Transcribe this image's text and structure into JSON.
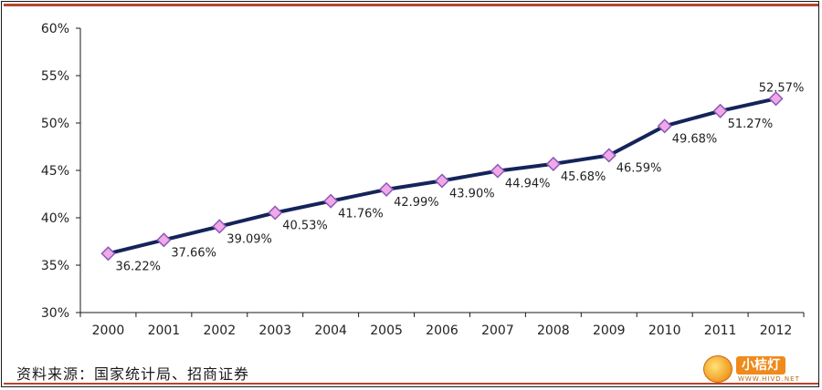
{
  "chart_data": {
    "type": "line",
    "categories": [
      "2000",
      "2001",
      "2002",
      "2003",
      "2004",
      "2005",
      "2006",
      "2007",
      "2008",
      "2009",
      "2010",
      "2011",
      "2012"
    ],
    "values": [
      36.22,
      37.66,
      39.09,
      40.53,
      41.76,
      42.99,
      43.9,
      44.94,
      45.68,
      46.59,
      49.68,
      51.27,
      52.57
    ],
    "data_labels": [
      "36.22%",
      "37.66%",
      "39.09%",
      "40.53%",
      "41.76%",
      "42.99%",
      "43.90%",
      "44.94%",
      "45.68%",
      "46.59%",
      "49.68%",
      "51.27%",
      "52.57%"
    ],
    "ylim": [
      30,
      60
    ],
    "yticks": [
      30,
      35,
      40,
      45,
      50,
      55,
      60
    ],
    "ytick_labels": [
      "30%",
      "35%",
      "40%",
      "45%",
      "50%",
      "55%",
      "60%"
    ],
    "grid": false,
    "legend": "none",
    "line_color": "#14245a",
    "marker_color": "#f2a8e8",
    "marker_border": "#8a5ab8"
  },
  "source_note": "资料来源：国家统计局、招商证券",
  "watermark": {
    "text": "小桔灯",
    "subtext": "WWW.HIVD.NET"
  }
}
